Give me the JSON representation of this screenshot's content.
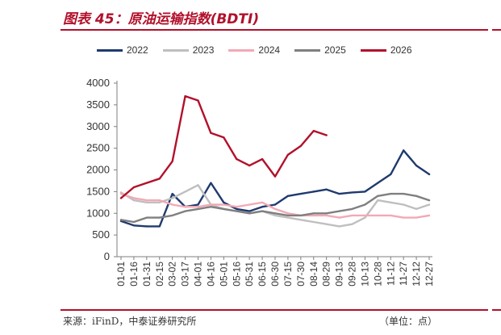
{
  "title": "图表 45：原油运输指数(BDTI)",
  "source": "来源：iFinD，中泰证券研究所",
  "unit": "（单位：点）",
  "colors": {
    "accent": "#b2102b"
  },
  "chart_data": {
    "type": "line",
    "title": "图表 45：原油运输指数(BDTI)",
    "xlabel": "",
    "ylabel": "",
    "ylim": [
      0,
      4000
    ],
    "yticks": [
      0,
      500,
      1000,
      1500,
      2000,
      2500,
      3000,
      3500,
      4000
    ],
    "grid": false,
    "legend_position": "top",
    "x": [
      "01-01",
      "01-16",
      "01-31",
      "02-15",
      "03-02",
      "03-17",
      "04-01",
      "04-16",
      "05-01",
      "05-16",
      "05-31",
      "06-15",
      "06-30",
      "07-15",
      "07-30",
      "08-14",
      "08-29",
      "09-13",
      "09-28",
      "10-13",
      "10-28",
      "11-12",
      "11-27",
      "12-12",
      "12-27"
    ],
    "series": [
      {
        "name": "2022",
        "color": "#1f3a6e",
        "values": [
          820,
          720,
          700,
          700,
          1450,
          1150,
          1200,
          1700,
          1250,
          1100,
          1050,
          1150,
          1200,
          1400,
          1450,
          1500,
          1550,
          1450,
          1480,
          1500,
          1700,
          1900,
          2450,
          2100,
          1900
        ]
      },
      {
        "name": "2023",
        "color": "#bfbfbf",
        "values": [
          1480,
          1300,
          1250,
          1250,
          1350,
          1500,
          1650,
          1200,
          1100,
          1050,
          1000,
          1050,
          950,
          900,
          850,
          800,
          750,
          700,
          750,
          900,
          1300,
          1250,
          1200,
          1100,
          1200
        ]
      },
      {
        "name": "2024",
        "color": "#f2a9b5",
        "values": [
          1450,
          1350,
          1300,
          1300,
          1200,
          1150,
          1150,
          1200,
          1200,
          1150,
          1200,
          1250,
          1100,
          1000,
          950,
          950,
          950,
          900,
          950,
          950,
          950,
          950,
          900,
          900,
          950
        ]
      },
      {
        "name": "2025",
        "color": "#7f7f7f",
        "values": [
          850,
          800,
          900,
          900,
          950,
          1050,
          1100,
          1150,
          1100,
          1050,
          1000,
          1050,
          1000,
          950,
          950,
          1000,
          1000,
          1050,
          1100,
          1200,
          1400,
          1450,
          1450,
          1400,
          1300
        ]
      },
      {
        "name": "2026",
        "color": "#b2102b",
        "values": [
          1350,
          1600,
          1700,
          1800,
          2200,
          3700,
          3600,
          2850,
          2750,
          2250,
          2100,
          2250,
          1850,
          2350,
          2550,
          2900,
          2800,
          null,
          null,
          null,
          null,
          null,
          null,
          null,
          null
        ]
      }
    ]
  }
}
